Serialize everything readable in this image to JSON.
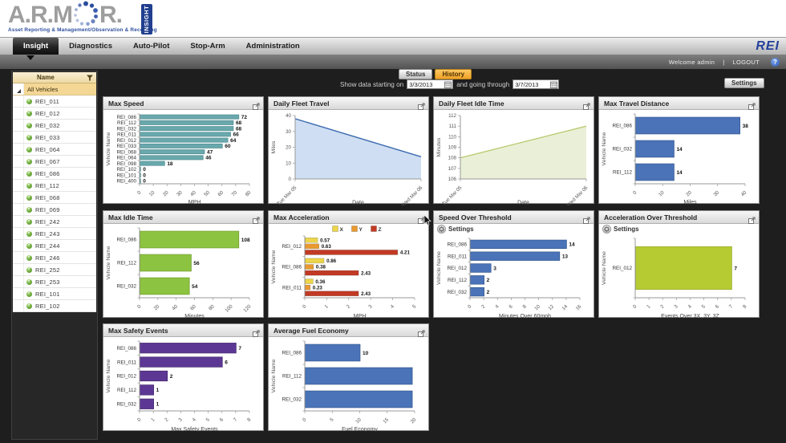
{
  "header": {
    "logo_part1": "A.R.M",
    "logo_part2": "R.",
    "logo_tagline": "Asset Reporting & Management/Observation & Recording",
    "logo_badge": "INSIGHT",
    "brand_right": "REI"
  },
  "nav": {
    "tabs": [
      {
        "label": "Insight",
        "active": true
      },
      {
        "label": "Diagnostics",
        "active": false
      },
      {
        "label": "Auto-Pilot",
        "active": false
      },
      {
        "label": "Stop-Arm",
        "active": false
      },
      {
        "label": "Administration",
        "active": false
      }
    ]
  },
  "userbar": {
    "welcome": "Welcome admin",
    "separator": "|",
    "logout": "LOGOUT",
    "help": "?"
  },
  "toolbar": {
    "status_label": "Status",
    "history_label": "History",
    "date_prefix": "Show data starting on",
    "start_date": "3/3/2013",
    "date_middle": "and going through",
    "end_date": "3/7/2013",
    "settings_label": "Settings"
  },
  "sidebar": {
    "header": "Name",
    "root": "All Vehicles",
    "vehicles": [
      "REI_011",
      "REI_012",
      "REI_032",
      "REI_033",
      "REI_064",
      "REI_067",
      "REI_086",
      "REI_112",
      "REI_068",
      "REI_069",
      "REI_242",
      "REI_243",
      "REI_244",
      "REI_246",
      "REI_252",
      "REI_253",
      "REI_101",
      "REI_102"
    ]
  },
  "colors": {
    "teal_bar": "#69a8ac",
    "blue_bar": "#4a73b8",
    "green_bar": "#8cc340",
    "lime_bar": "#b6cb32",
    "purple_bar": "#5c3894",
    "accel_x": "#ecd54a",
    "accel_y": "#e9992f",
    "accel_z": "#c23a24",
    "history_accent": "#f2a62c",
    "brand_blue": "#2b4d9e"
  },
  "charts": [
    {
      "id": "max-speed",
      "title": "Max Speed",
      "chart_data": {
        "type": "bar",
        "orientation": "horizontal",
        "categories": [
          "REI_086",
          "REI_112",
          "REI_032",
          "REI_011",
          "REI_012",
          "REI_033",
          "REI_068",
          "REI_064",
          "REI_098",
          "REI_102",
          "REI_101",
          "REI_400"
        ],
        "values": [
          72,
          68,
          68,
          66,
          64,
          60,
          47,
          46,
          18,
          0,
          0,
          0
        ],
        "bar_color": "#69a8ac",
        "bar_stroke": "#4f8d91",
        "xlim": [
          0,
          80
        ],
        "xticks": [
          0,
          10,
          20,
          30,
          40,
          50,
          60,
          70,
          80
        ],
        "xlabel": "MPH",
        "ylabel": "Vehicle Name"
      }
    },
    {
      "id": "daily-fleet-travel",
      "title": "Daily Fleet Travel",
      "chart_data": {
        "type": "area",
        "x": [
          "Tue Mar 05",
          "Wed Mar 06"
        ],
        "values": [
          38,
          14
        ],
        "ylim": [
          0,
          40
        ],
        "yticks": [
          0,
          10,
          20,
          30,
          40
        ],
        "line_color": "#3d6cb0",
        "fill_color": "#cfdef2",
        "xlabel": "Date",
        "ylabel": "Miles"
      }
    },
    {
      "id": "daily-fleet-idle-time",
      "title": "Daily Fleet Idle Time",
      "chart_data": {
        "type": "area",
        "x": [
          "Tue Mar 05",
          "Wed Mar 06"
        ],
        "values": [
          108,
          111
        ],
        "ylim": [
          106,
          112
        ],
        "yticks": [
          106,
          107,
          108,
          109,
          110,
          111,
          112
        ],
        "line_color": "#b9cc73",
        "fill_color": "#eaf0d7",
        "xlabel": "Date",
        "ylabel": "Minutes"
      }
    },
    {
      "id": "max-travel-distance",
      "title": "Max Travel Distance",
      "chart_data": {
        "type": "bar",
        "orientation": "horizontal",
        "categories": [
          "REI_086",
          "REI_032",
          "REI_112"
        ],
        "values": [
          38,
          14,
          14
        ],
        "bar_color": "#4a73b8",
        "bar_stroke": "#35568e",
        "xlim": [
          0,
          40
        ],
        "xticks": [
          0,
          10,
          20,
          30,
          40
        ],
        "xlabel": "Miles",
        "ylabel": "Vehicle Name"
      }
    },
    {
      "id": "max-idle-time",
      "title": "Max Idle Time",
      "chart_data": {
        "type": "bar",
        "orientation": "horizontal",
        "categories": [
          "REI_086",
          "REI_112",
          "REI_032"
        ],
        "values": [
          108,
          56,
          54
        ],
        "bar_color": "#8cc340",
        "bar_stroke": "#6f9c2f",
        "xlim": [
          0,
          120
        ],
        "xticks": [
          0,
          20,
          40,
          60,
          80,
          100,
          120
        ],
        "xlabel": "Minutes",
        "ylabel": "Vehicle Name"
      }
    },
    {
      "id": "max-acceleration",
      "title": "Max Acceleration",
      "chart_data": {
        "type": "bar-grouped",
        "orientation": "horizontal",
        "categories": [
          "REI_012",
          "REI_086",
          "REI_011"
        ],
        "series": [
          {
            "name": "X",
            "color": "#ecd54a",
            "values": [
              0.57,
              0.86,
              0.36
            ]
          },
          {
            "name": "Y",
            "color": "#e9992f",
            "values": [
              0.63,
              0.38,
              0.23
            ]
          },
          {
            "name": "Z",
            "color": "#c23a24",
            "values": [
              4.21,
              2.43,
              2.43
            ]
          }
        ],
        "legend_position": "top",
        "xlim": [
          0,
          5
        ],
        "xticks": [
          0,
          1,
          2,
          3,
          4,
          5
        ],
        "xlabel": "MPH",
        "ylabel": "Vehicle Name"
      }
    },
    {
      "id": "speed-over-threshold",
      "title": "Speed Over Threshold",
      "settings_label": "Settings",
      "chart_data": {
        "type": "bar",
        "orientation": "horizontal",
        "categories": [
          "REI_086",
          "REI_011",
          "REI_012",
          "REI_112",
          "REI_032"
        ],
        "values": [
          14,
          13,
          3,
          2,
          2
        ],
        "bar_color": "#4a73b8",
        "bar_stroke": "#35568e",
        "xlim": [
          0,
          16
        ],
        "xticks": [
          0,
          2,
          4,
          6,
          8,
          10,
          12,
          14,
          16
        ],
        "xlabel": "Minutes Over 60mph",
        "ylabel": "Vehicle Name"
      }
    },
    {
      "id": "acceleration-over-threshold",
      "title": "Acceleration Over Threshold",
      "settings_label": "Settings",
      "chart_data": {
        "type": "bar",
        "orientation": "horizontal",
        "categories": [
          "REI_012"
        ],
        "values": [
          7
        ],
        "bar_color": "#b6cb32",
        "bar_stroke": "#93a626",
        "xlim": [
          0,
          8
        ],
        "xticks": [
          0,
          1,
          2,
          3,
          4,
          5,
          6,
          7,
          8
        ],
        "xlabel": "Events Over 3X, 3Y, 3Z",
        "ylabel": "Vehicle Name"
      }
    },
    {
      "id": "max-safety-events",
      "title": "Max Safety Events",
      "chart_data": {
        "type": "bar",
        "orientation": "horizontal",
        "categories": [
          "REI_086",
          "REI_011",
          "REI_012",
          "REI_112",
          "REI_032"
        ],
        "values": [
          7,
          6,
          2,
          1,
          1
        ],
        "bar_color": "#5c3894",
        "bar_stroke": "#452a70",
        "xlim": [
          0,
          8
        ],
        "xticks": [
          0,
          1,
          2,
          3,
          4,
          5,
          6,
          7,
          8
        ],
        "xlabel": "Max Safety Events",
        "ylabel": "Vehicle Name"
      }
    },
    {
      "id": "average-fuel-economy",
      "title": "Average Fuel Economy",
      "chart_data": {
        "type": "bar",
        "orientation": "horizontal",
        "categories": [
          "REI_086",
          "REI_112",
          "REI_032"
        ],
        "values": [
          10,
          19.5,
          19.5
        ],
        "value_labels": [
          "10",
          "",
          ""
        ],
        "bar_color": "#4a73b8",
        "bar_stroke": "#35568e",
        "xlim": [
          0,
          20
        ],
        "xticks": [
          0,
          5,
          10,
          15,
          20
        ],
        "xlabel": "Fuel Economy",
        "ylabel": "Vehicle Name"
      }
    }
  ]
}
